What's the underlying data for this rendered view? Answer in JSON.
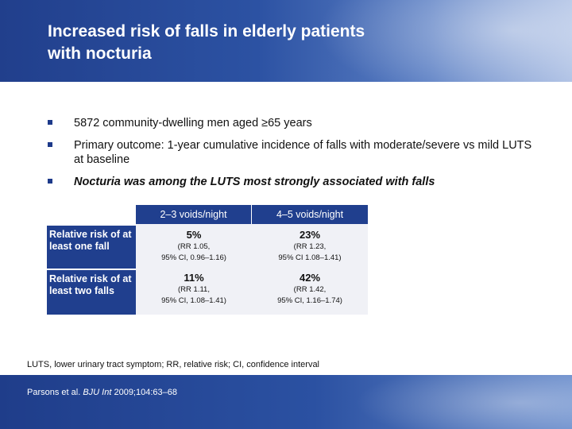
{
  "header": {
    "title_line1": "Increased risk of falls in elderly patients",
    "title_line2": "with nocturia"
  },
  "bullets": [
    {
      "text": "5872 community-dwelling men aged ≥65 years"
    },
    {
      "text": "Primary outcome: 1-year cumulative incidence of falls with moderate/severe vs mild LUTS at baseline"
    },
    {
      "text": "Nocturia was among the LUTS most strongly associated with falls"
    }
  ],
  "table": {
    "columns": [
      "2–3 voids/night",
      "4–5 voids/night"
    ],
    "rows": [
      {
        "label": "Relative risk of at least one fall",
        "cells": [
          {
            "value": "5%",
            "ci_line1": "(RR 1.05,",
            "ci_line2": "95% CI, 0.96–1.16)"
          },
          {
            "value": "23%",
            "ci_line1": "(RR 1.23,",
            "ci_line2": "95% CI 1.08–1.41)"
          }
        ]
      },
      {
        "label": "Relative risk of at least two falls",
        "cells": [
          {
            "value": "11%",
            "ci_line1": "(RR 1.11,",
            "ci_line2": "95% CI, 1.08–1.41)"
          },
          {
            "value": "42%",
            "ci_line1": "(RR 1.42,",
            "ci_line2": "95% CI, 1.16–1.74)"
          }
        ]
      }
    ]
  },
  "footnote": "LUTS, lower urinary tract symptom; RR, relative risk; CI, confidence interval",
  "citation": {
    "pre": "Parsons et al. ",
    "journal": "BJU Int",
    "post": " 2009;104:63–68"
  }
}
